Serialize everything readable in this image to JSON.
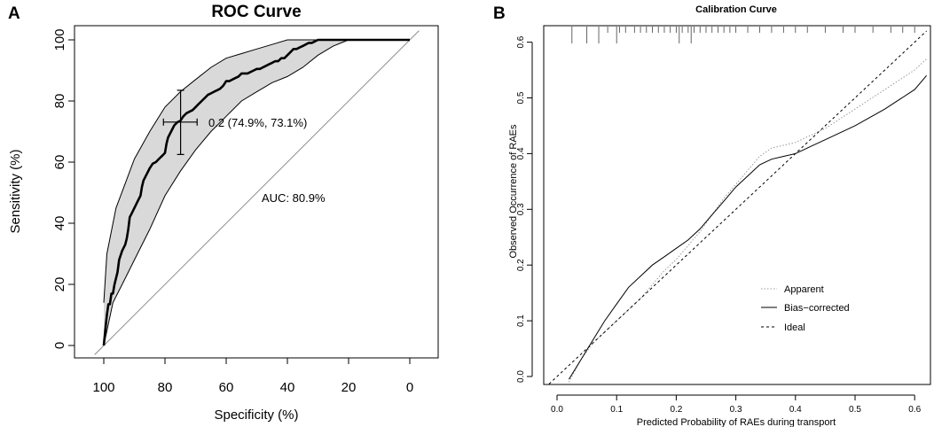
{
  "panel_labels": {
    "a": "A",
    "b": "B"
  },
  "chart_data": [
    {
      "type": "line",
      "title": "ROC Curve",
      "xlabel": "Specificity (%)",
      "ylabel": "Sensitivity (%)",
      "xlim": [
        100,
        0
      ],
      "ylim": [
        0,
        100
      ],
      "x_ticks": [
        100,
        80,
        60,
        40,
        20,
        0
      ],
      "y_ticks": [
        0,
        20,
        40,
        60,
        80,
        100
      ],
      "threshold_label": "0.2 (74.9%, 73.1%)",
      "auc_label": "AUC: 80.9%",
      "threshold_point": {
        "specificity": 74.9,
        "sensitivity": 73.1,
        "ci_specificity": [
          69.5,
          80.5
        ],
        "ci_sensitivity": [
          62.5,
          83.5
        ]
      },
      "series": [
        {
          "name": "ROC",
          "specificity": [
            100,
            99.5,
            99,
            98.5,
            98,
            97.5,
            97,
            96.5,
            96,
            95.5,
            95,
            94,
            93,
            92.5,
            92,
            91.5,
            91,
            90,
            89,
            88,
            87.5,
            87,
            86,
            85,
            84,
            83,
            82,
            81,
            80,
            79.5,
            79,
            78,
            77,
            76,
            75,
            74,
            73,
            72,
            71,
            70,
            69,
            68,
            67,
            66,
            65,
            64,
            63,
            62,
            61,
            60,
            59,
            58,
            57,
            56,
            55,
            54,
            53,
            52,
            51,
            50,
            49,
            48,
            47,
            46,
            45,
            44,
            43,
            42,
            41,
            40,
            39,
            38,
            37,
            36,
            35,
            34,
            33,
            32,
            31,
            30,
            29,
            28,
            27,
            26,
            25,
            24,
            23,
            22,
            21,
            20,
            0
          ],
          "sensitivity": [
            0,
            5,
            10,
            13.5,
            13.5,
            17,
            17,
            20,
            22,
            24,
            28,
            31,
            33,
            35,
            38,
            42,
            43,
            45,
            47,
            49,
            52,
            54,
            56,
            58,
            59.5,
            60,
            61,
            62,
            63,
            66,
            68,
            70,
            72,
            73,
            73.5,
            75,
            76,
            76.5,
            77,
            78,
            79,
            80,
            81,
            82,
            82.5,
            83,
            83.5,
            84,
            85,
            86.5,
            86.5,
            87,
            87.5,
            88,
            89,
            89,
            89,
            89.5,
            90,
            90.5,
            90.5,
            91,
            91.5,
            92,
            92.5,
            93,
            93,
            94,
            94,
            95,
            96,
            97,
            97,
            97.5,
            98,
            98.5,
            99,
            99,
            99.5,
            100,
            100,
            100,
            100,
            100,
            100,
            100,
            100,
            100,
            100,
            100,
            100
          ]
        },
        {
          "name": "CI upper",
          "specificity": [
            100,
            99,
            96,
            93,
            90,
            85,
            80,
            75,
            70,
            65,
            60,
            55,
            50,
            45,
            40,
            35,
            30,
            25,
            20,
            0
          ],
          "sensitivity": [
            14,
            30,
            45,
            53,
            61,
            70,
            78,
            83,
            87,
            91,
            94,
            95.5,
            97,
            98.5,
            100,
            100,
            100,
            100,
            100,
            100
          ]
        },
        {
          "name": "CI lower",
          "specificity": [
            100,
            97,
            93,
            90,
            85,
            80,
            75,
            70,
            65,
            60,
            55,
            50,
            45,
            40,
            35,
            30,
            25,
            20,
            0
          ],
          "sensitivity": [
            0,
            14,
            22,
            28,
            38,
            49,
            57,
            64,
            70,
            75,
            80,
            83,
            86,
            88,
            91,
            95,
            98,
            100,
            100
          ]
        },
        {
          "name": "Chance",
          "specificity": [
            103,
            -3
          ],
          "sensitivity": [
            -3,
            103
          ]
        }
      ]
    },
    {
      "type": "line",
      "title": "Calibration Curve",
      "xlabel": "Predicted Probability of RAEs during transport",
      "ylabel": "Observed Occurrence of RAEs",
      "xlim": [
        -0.02,
        0.62
      ],
      "ylim": [
        -0.02,
        0.62
      ],
      "x_ticks": [
        0.0,
        0.1,
        0.2,
        0.3,
        0.4,
        0.5,
        0.6
      ],
      "y_ticks": [
        0.0,
        0.1,
        0.2,
        0.3,
        0.4,
        0.5,
        0.6
      ],
      "x_tick_labels": [
        "0.0",
        "0.1",
        "0.2",
        "0.3",
        "0.4",
        "0.5",
        "0.6"
      ],
      "y_tick_labels": [
        "0.0",
        "0.1",
        "0.2",
        "0.3",
        "0.4",
        "0.5",
        "0.6"
      ],
      "legend": [
        "Apparent",
        "Bias−corrected",
        "Ideal"
      ],
      "legend_position": "center-right",
      "series": [
        {
          "name": "Apparent",
          "style": "dotted",
          "x": [
            0.02,
            0.04,
            0.06,
            0.08,
            0.1,
            0.12,
            0.14,
            0.16,
            0.18,
            0.2,
            0.22,
            0.24,
            0.26,
            0.28,
            0.3,
            0.32,
            0.34,
            0.36,
            0.38,
            0.4,
            0.42,
            0.45,
            0.5,
            0.55,
            0.6,
            0.62
          ],
          "y": [
            -0.01,
            0.03,
            0.06,
            0.08,
            0.1,
            0.12,
            0.14,
            0.165,
            0.19,
            0.21,
            0.235,
            0.26,
            0.29,
            0.32,
            0.345,
            0.37,
            0.395,
            0.41,
            0.415,
            0.42,
            0.43,
            0.445,
            0.48,
            0.515,
            0.55,
            0.57
          ]
        },
        {
          "name": "Bias−corrected",
          "style": "solid",
          "x": [
            0.02,
            0.04,
            0.06,
            0.08,
            0.1,
            0.12,
            0.14,
            0.16,
            0.18,
            0.2,
            0.22,
            0.24,
            0.26,
            0.28,
            0.3,
            0.32,
            0.34,
            0.36,
            0.38,
            0.4,
            0.42,
            0.45,
            0.5,
            0.55,
            0.6,
            0.62
          ],
          "y": [
            -0.005,
            0.03,
            0.065,
            0.1,
            0.13,
            0.16,
            0.18,
            0.2,
            0.215,
            0.23,
            0.245,
            0.265,
            0.29,
            0.315,
            0.34,
            0.36,
            0.38,
            0.39,
            0.395,
            0.4,
            0.41,
            0.425,
            0.45,
            0.48,
            0.515,
            0.54
          ]
        },
        {
          "name": "Ideal",
          "style": "dashed",
          "x": [
            -0.02,
            0.62
          ],
          "y": [
            -0.02,
            0.62
          ]
        }
      ],
      "rug_x": [
        0.025,
        0.05,
        0.07,
        0.085,
        0.1,
        0.105,
        0.115,
        0.13,
        0.14,
        0.15,
        0.16,
        0.17,
        0.18,
        0.19,
        0.2,
        0.205,
        0.21,
        0.22,
        0.225,
        0.23,
        0.24,
        0.25,
        0.26,
        0.27,
        0.28,
        0.29,
        0.3,
        0.32,
        0.34,
        0.36,
        0.38,
        0.4,
        0.42,
        0.45,
        0.48,
        0.5,
        0.53,
        0.56,
        0.58,
        0.6
      ],
      "rug_long": [
        0.025,
        0.05,
        0.07,
        0.1,
        0.205,
        0.225
      ]
    }
  ]
}
